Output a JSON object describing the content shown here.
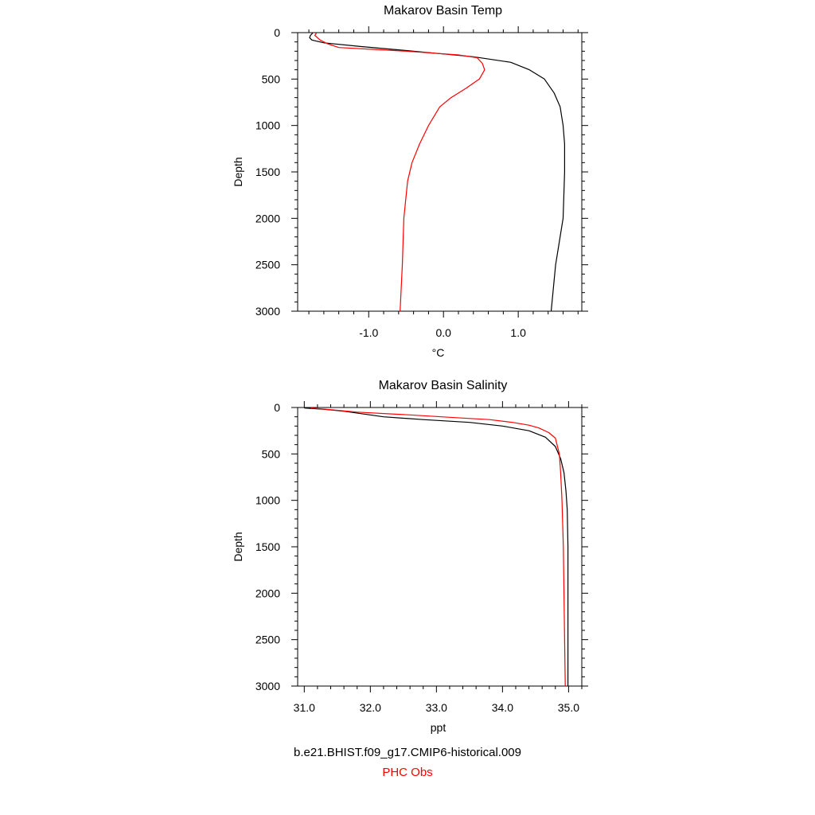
{
  "chart_data": [
    {
      "type": "line",
      "title": "Makarov Basin Temp",
      "xlabel": "°C",
      "ylabel": "Depth",
      "xlim": [
        -1.95,
        1.85
      ],
      "ylim": [
        0,
        3000
      ],
      "y_inverted": true,
      "x_ticks": [
        -1.0,
        0.0,
        1.0
      ],
      "x_tick_labels": [
        "-1.0",
        "0.0",
        "1.0"
      ],
      "y_ticks": [
        0,
        500,
        1000,
        1500,
        2000,
        2500,
        3000
      ],
      "y_tick_labels": [
        "0",
        "500",
        "1000",
        "1500",
        "2000",
        "2500",
        "3000"
      ],
      "grid": false,
      "series": [
        {
          "name": "b.e21.BHIST.f09_g17.CMIP6-historical.009",
          "color": "#000000",
          "points": [
            [
              -1.75,
              5
            ],
            [
              -1.78,
              30
            ],
            [
              -1.79,
              55
            ],
            [
              -1.76,
              80
            ],
            [
              -1.6,
              110
            ],
            [
              -1.1,
              150
            ],
            [
              -0.4,
              200
            ],
            [
              0.4,
              260
            ],
            [
              0.9,
              320
            ],
            [
              1.15,
              400
            ],
            [
              1.35,
              500
            ],
            [
              1.48,
              650
            ],
            [
              1.56,
              800
            ],
            [
              1.6,
              1000
            ],
            [
              1.62,
              1200
            ],
            [
              1.62,
              1500
            ],
            [
              1.6,
              2000
            ],
            [
              1.55,
              2250
            ],
            [
              1.5,
              2500
            ],
            [
              1.44,
              3000
            ]
          ]
        },
        {
          "name": "PHC Obs",
          "color": "#ff0000",
          "points": [
            [
              -1.7,
              5
            ],
            [
              -1.72,
              30
            ],
            [
              -1.65,
              80
            ],
            [
              -1.55,
              120
            ],
            [
              -1.4,
              160
            ],
            [
              -0.5,
              200
            ],
            [
              0.2,
              240
            ],
            [
              0.45,
              270
            ],
            [
              0.52,
              330
            ],
            [
              0.55,
              400
            ],
            [
              0.48,
              500
            ],
            [
              0.3,
              600
            ],
            [
              0.1,
              700
            ],
            [
              -0.05,
              800
            ],
            [
              -0.2,
              1000
            ],
            [
              -0.32,
              1200
            ],
            [
              -0.42,
              1400
            ],
            [
              -0.48,
              1600
            ],
            [
              -0.53,
              2000
            ],
            [
              -0.55,
              2500
            ],
            [
              -0.58,
              3000
            ]
          ]
        }
      ]
    },
    {
      "type": "line",
      "title": "Makarov Basin Salinity",
      "xlabel": "ppt",
      "ylabel": "Depth",
      "xlim": [
        30.9,
        35.2
      ],
      "ylim": [
        0,
        3000
      ],
      "y_inverted": true,
      "x_ticks": [
        31.0,
        32.0,
        33.0,
        34.0,
        35.0
      ],
      "x_tick_labels": [
        "31.0",
        "32.0",
        "33.0",
        "34.0",
        "35.0"
      ],
      "y_ticks": [
        0,
        500,
        1000,
        1500,
        2000,
        2500,
        3000
      ],
      "y_tick_labels": [
        "0",
        "500",
        "1000",
        "1500",
        "2000",
        "2500",
        "3000"
      ],
      "grid": false,
      "series": [
        {
          "name": "b.e21.BHIST.f09_g17.CMIP6-historical.009",
          "color": "#000000",
          "points": [
            [
              31.0,
              5
            ],
            [
              31.3,
              20
            ],
            [
              31.6,
              40
            ],
            [
              31.9,
              70
            ],
            [
              32.2,
              100
            ],
            [
              32.8,
              130
            ],
            [
              33.5,
              160
            ],
            [
              34.0,
              200
            ],
            [
              34.4,
              250
            ],
            [
              34.65,
              320
            ],
            [
              34.8,
              420
            ],
            [
              34.88,
              550
            ],
            [
              34.93,
              700
            ],
            [
              34.96,
              900
            ],
            [
              34.98,
              1100
            ],
            [
              34.99,
              1500
            ],
            [
              34.99,
              2000
            ],
            [
              34.99,
              2500
            ],
            [
              34.99,
              3000
            ]
          ]
        },
        {
          "name": "PHC Obs",
          "color": "#ff0000",
          "points": [
            [
              31.1,
              5
            ],
            [
              31.5,
              30
            ],
            [
              31.8,
              50
            ],
            [
              32.6,
              80
            ],
            [
              33.3,
              110
            ],
            [
              33.8,
              130
            ],
            [
              34.15,
              160
            ],
            [
              34.4,
              190
            ],
            [
              34.55,
              220
            ],
            [
              34.7,
              270
            ],
            [
              34.8,
              330
            ],
            [
              34.86,
              500
            ],
            [
              34.88,
              700
            ],
            [
              34.9,
              1000
            ],
            [
              34.92,
              1500
            ],
            [
              34.93,
              2000
            ],
            [
              34.94,
              2500
            ],
            [
              34.95,
              3000
            ]
          ]
        }
      ]
    }
  ],
  "legend": {
    "model_label": "b.e21.BHIST.f09_g17.CMIP6-historical.009",
    "obs_label": "PHC Obs",
    "obs_color": "#ff0000"
  }
}
